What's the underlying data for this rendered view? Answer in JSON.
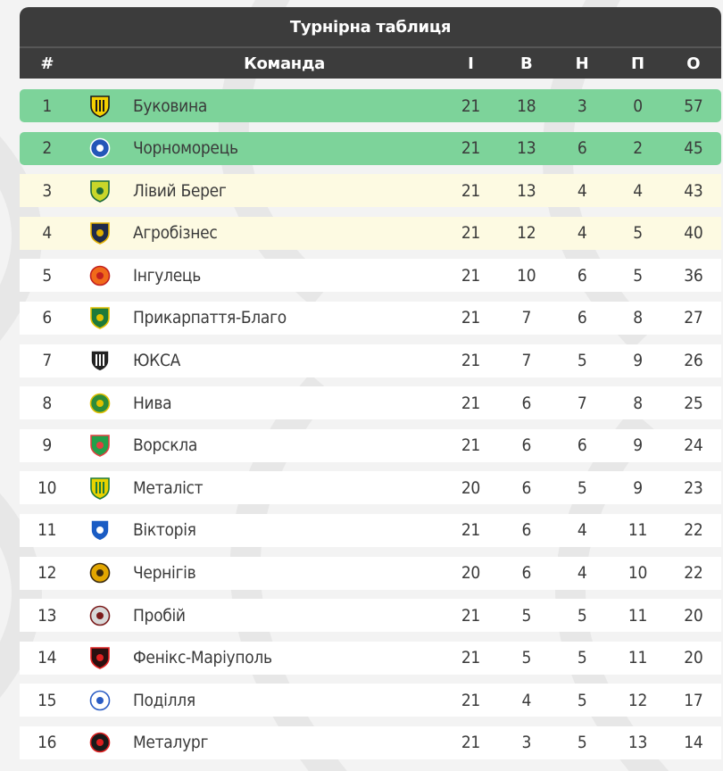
{
  "title": "Турнірна таблиця",
  "columns": {
    "pos": "#",
    "team": "Команда",
    "played": "І",
    "won": "В",
    "drawn": "Н",
    "lost": "П",
    "points": "О"
  },
  "colors": {
    "header_bg": "#3c3c3c",
    "promotion_bg": "#7dd39a",
    "playoff_bg": "#fdfae2",
    "row_bg": "#ffffff"
  },
  "rows": [
    {
      "pos": "1",
      "team": "Буковина",
      "played": "21",
      "won": "18",
      "drawn": "3",
      "lost": "0",
      "points": "57",
      "zone": "promo",
      "logo": "shield-stripes",
      "c1": "#f5d000",
      "c2": "#1a1a1a"
    },
    {
      "pos": "2",
      "team": "Чорноморець",
      "played": "21",
      "won": "13",
      "drawn": "6",
      "lost": "2",
      "points": "45",
      "zone": "promo",
      "logo": "round",
      "c1": "#2456b8",
      "c2": "#ffffff"
    },
    {
      "pos": "3",
      "team": "Лівий Берег",
      "played": "21",
      "won": "13",
      "drawn": "4",
      "lost": "4",
      "points": "43",
      "zone": "playoff",
      "logo": "shield",
      "c1": "#c9d62a",
      "c2": "#1d6a3a"
    },
    {
      "pos": "4",
      "team": "Агробізнес",
      "played": "21",
      "won": "12",
      "drawn": "4",
      "lost": "5",
      "points": "40",
      "zone": "playoff",
      "logo": "shield",
      "c1": "#1f2a4a",
      "c2": "#e2b000"
    },
    {
      "pos": "5",
      "team": "Інгулець",
      "played": "21",
      "won": "10",
      "drawn": "6",
      "lost": "5",
      "points": "36",
      "zone": "plain",
      "logo": "star",
      "c1": "#f06a1a",
      "c2": "#c22020"
    },
    {
      "pos": "6",
      "team": "Прикарпаття-Благо",
      "played": "21",
      "won": "7",
      "drawn": "6",
      "lost": "8",
      "points": "27",
      "zone": "plain",
      "logo": "shield",
      "c1": "#1c7a3a",
      "c2": "#e2c000"
    },
    {
      "pos": "7",
      "team": "ЮКСА",
      "played": "21",
      "won": "7",
      "drawn": "5",
      "lost": "9",
      "points": "26",
      "zone": "plain",
      "logo": "shield-stripes",
      "c1": "#222222",
      "c2": "#ffffff"
    },
    {
      "pos": "8",
      "team": "Нива",
      "played": "21",
      "won": "6",
      "drawn": "7",
      "lost": "8",
      "points": "25",
      "zone": "plain",
      "logo": "round",
      "c1": "#2c8c3a",
      "c2": "#e2c000"
    },
    {
      "pos": "9",
      "team": "Ворскла",
      "played": "21",
      "won": "6",
      "drawn": "6",
      "lost": "9",
      "points": "24",
      "zone": "plain",
      "logo": "shield",
      "c1": "#22a04a",
      "c2": "#e04040"
    },
    {
      "pos": "10",
      "team": "Металіст",
      "played": "20",
      "won": "6",
      "drawn": "5",
      "lost": "9",
      "points": "23",
      "zone": "plain",
      "logo": "shield-stripes",
      "c1": "#e8d200",
      "c2": "#1f7a3a"
    },
    {
      "pos": "11",
      "team": "Вікторія",
      "played": "21",
      "won": "6",
      "drawn": "4",
      "lost": "11",
      "points": "22",
      "zone": "plain",
      "logo": "shield",
      "c1": "#1a5cc4",
      "c2": "#ffffff"
    },
    {
      "pos": "12",
      "team": "Чернігів",
      "played": "20",
      "won": "6",
      "drawn": "4",
      "lost": "10",
      "points": "22",
      "zone": "plain",
      "logo": "round",
      "c1": "#e2a600",
      "c2": "#3a2a10"
    },
    {
      "pos": "13",
      "team": "Пробій",
      "played": "21",
      "won": "5",
      "drawn": "5",
      "lost": "11",
      "points": "20",
      "zone": "plain",
      "logo": "round",
      "c1": "#d8d8d8",
      "c2": "#7a1a1a"
    },
    {
      "pos": "14",
      "team": "Фенікс-Маріуполь",
      "played": "21",
      "won": "5",
      "drawn": "5",
      "lost": "11",
      "points": "20",
      "zone": "plain",
      "logo": "shield",
      "c1": "#2a1010",
      "c2": "#e02020"
    },
    {
      "pos": "15",
      "team": "Поділля",
      "played": "21",
      "won": "4",
      "drawn": "5",
      "lost": "12",
      "points": "17",
      "zone": "plain",
      "logo": "round",
      "c1": "#ffffff",
      "c2": "#2a5cc4"
    },
    {
      "pos": "16",
      "team": "Металург",
      "played": "21",
      "won": "3",
      "drawn": "5",
      "lost": "13",
      "points": "14",
      "zone": "plain",
      "logo": "round",
      "c1": "#1a1a1a",
      "c2": "#e02020"
    }
  ]
}
